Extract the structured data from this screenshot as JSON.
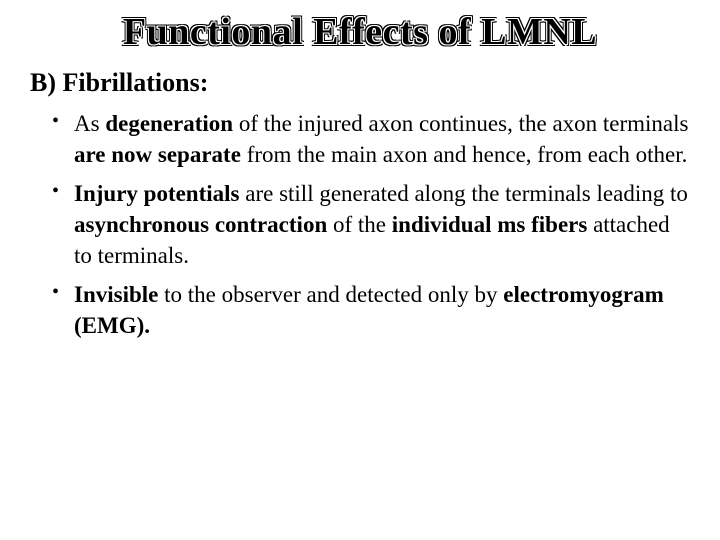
{
  "title": "Functional Effects of LMNL",
  "subheading": "B) Fibrillations:",
  "bullets": [
    {
      "pre1": "As ",
      "bold1": "degeneration",
      "mid1": " of the injured axon continues, the axon terminals ",
      "bold2": "are now separate",
      "post1": " from the main axon and hence, from each other."
    },
    {
      "bold1": "Injury potentials",
      "mid1": " are still generated along the terminals leading to ",
      "bold2": "asynchronous contraction",
      "mid2": " of the ",
      "bold3": "individual ms fibers",
      "post1": " attached to terminals."
    },
    {
      "bold1": "Invisible",
      "mid1": " to the observer and detected only by ",
      "bold2": "electromyogram (EMG)."
    }
  ]
}
